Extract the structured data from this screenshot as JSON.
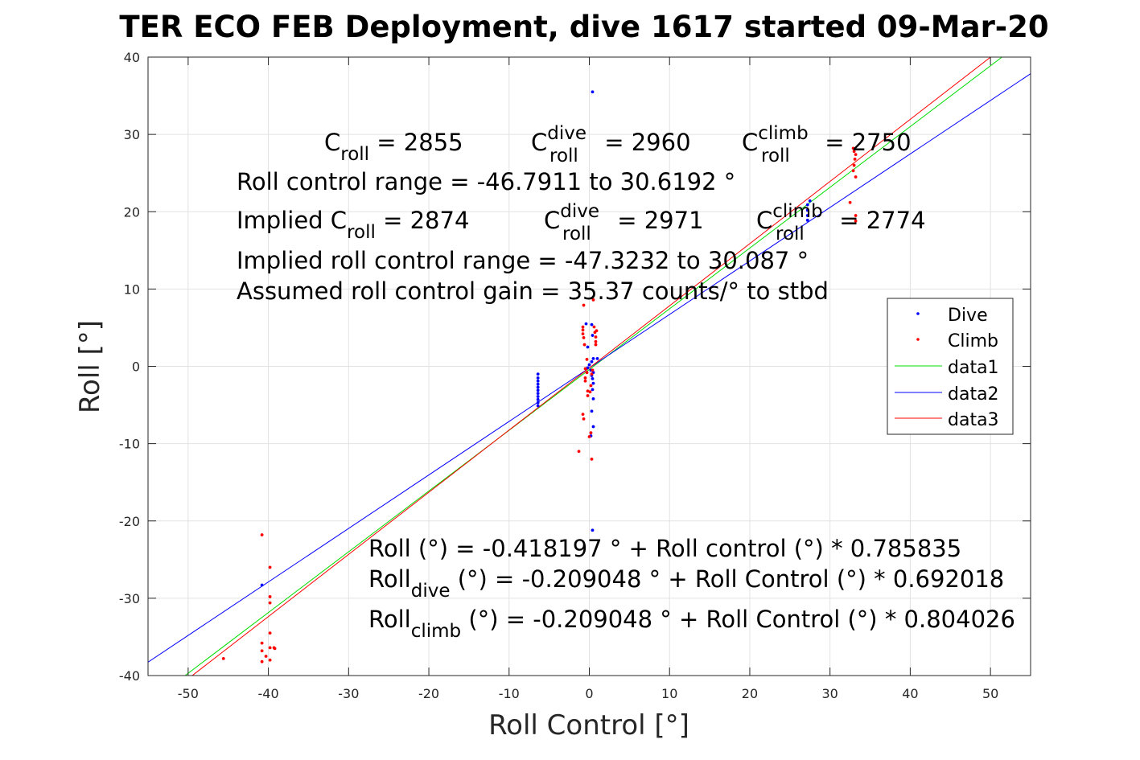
{
  "chart_data": {
    "type": "scatter",
    "title": "TER ECO FEB Deployment, dive 1617 started 09-Mar-20",
    "xlabel": "Roll Control [°]",
    "ylabel": "Roll [°]",
    "xlim": [
      -55,
      55
    ],
    "ylim": [
      -40,
      40
    ],
    "xticks": [
      -50,
      -40,
      -30,
      -20,
      -10,
      0,
      10,
      20,
      30,
      40,
      50
    ],
    "yticks": [
      -40,
      -30,
      -20,
      -10,
      0,
      10,
      20,
      30,
      40
    ],
    "grid": true,
    "legend_position": "right",
    "series": [
      {
        "name": "Dive",
        "kind": "points",
        "color": "#0000ff",
        "points": [
          [
            -40.8,
            -28.3
          ],
          [
            -6.4,
            -1.0
          ],
          [
            -6.4,
            -1.5
          ],
          [
            -6.4,
            -1.9
          ],
          [
            -6.4,
            -2.3
          ],
          [
            -6.4,
            -2.7
          ],
          [
            -6.4,
            -3.1
          ],
          [
            -6.4,
            -3.5
          ],
          [
            -6.4,
            -3.9
          ],
          [
            -6.4,
            -4.3
          ],
          [
            -6.4,
            -4.7
          ],
          [
            -6.4,
            -5.1
          ],
          [
            -0.4,
            5.5
          ],
          [
            0.3,
            5.4
          ],
          [
            0.4,
            4.0
          ],
          [
            -0.2,
            2.5
          ],
          [
            0.5,
            1.0
          ],
          [
            1.0,
            1.0
          ],
          [
            0.3,
            0.6
          ],
          [
            0.0,
            0.2
          ],
          [
            -0.2,
            -0.2
          ],
          [
            0.2,
            -0.5
          ],
          [
            0.5,
            -0.8
          ],
          [
            0.3,
            -1.2
          ],
          [
            0.4,
            -1.6
          ],
          [
            0.5,
            -2.2
          ],
          [
            0.4,
            -3.0
          ],
          [
            0.5,
            -4.2
          ],
          [
            0.3,
            -5.8
          ],
          [
            0.5,
            -7.8
          ],
          [
            0.2,
            -9.0
          ],
          [
            0.4,
            -21.2
          ],
          [
            0.4,
            35.5
          ],
          [
            27.2,
            18.9
          ],
          [
            27.2,
            19.5
          ],
          [
            27.2,
            20.2
          ],
          [
            27.2,
            20.9
          ],
          [
            27.5,
            21.4
          ]
        ]
      },
      {
        "name": "Climb",
        "kind": "points",
        "color": "#ff0000",
        "points": [
          [
            -45.6,
            -37.8
          ],
          [
            -40.8,
            -21.8
          ],
          [
            -40.8,
            -35.8
          ],
          [
            -40.8,
            -36.8
          ],
          [
            -40.8,
            -38.2
          ],
          [
            -40.3,
            -37.5
          ],
          [
            -39.8,
            -26.0
          ],
          [
            -39.8,
            -29.8
          ],
          [
            -39.8,
            -30.6
          ],
          [
            -39.8,
            -34.5
          ],
          [
            -39.8,
            -36.4
          ],
          [
            -39.8,
            -38.0
          ],
          [
            -39.3,
            -36.4
          ],
          [
            -39.2,
            -36.5
          ],
          [
            -1.3,
            -11.0
          ],
          [
            -0.8,
            -6.2
          ],
          [
            -0.7,
            -6.8
          ],
          [
            -0.7,
            7.9
          ],
          [
            -0.8,
            5.1
          ],
          [
            -0.8,
            4.7
          ],
          [
            -0.8,
            4.2
          ],
          [
            -0.7,
            3.7
          ],
          [
            -0.6,
            2.8
          ],
          [
            -0.5,
            -0.3
          ],
          [
            -0.5,
            -1.5
          ],
          [
            -0.5,
            -1.9
          ],
          [
            -0.3,
            -0.8
          ],
          [
            -0.3,
            0.9
          ],
          [
            -0.2,
            -3.2
          ],
          [
            -0.2,
            -3.8
          ],
          [
            0.0,
            -9.1
          ],
          [
            0.2,
            -8.6
          ],
          [
            0.3,
            -12.0
          ],
          [
            0.5,
            8.6
          ],
          [
            0.6,
            5.1
          ],
          [
            0.7,
            4.4
          ],
          [
            0.8,
            3.8
          ],
          [
            0.8,
            3.2
          ],
          [
            0.8,
            2.8
          ],
          [
            0.9,
            4.6
          ],
          [
            0.4,
            -0.5
          ],
          [
            0.3,
            -1.0
          ],
          [
            0.2,
            -2.5
          ],
          [
            0.1,
            -3.3
          ],
          [
            32.9,
            28.2
          ],
          [
            33.0,
            27.8
          ],
          [
            33.2,
            27.4
          ],
          [
            33.1,
            26.8
          ],
          [
            33.0,
            26.0
          ],
          [
            32.9,
            25.3
          ],
          [
            33.2,
            24.5
          ],
          [
            32.5,
            21.2
          ],
          [
            33.2,
            19.5
          ],
          [
            33.2,
            18.8
          ]
        ]
      },
      {
        "name": "data1",
        "kind": "line",
        "color": "#00dd00",
        "x": [
          -55,
          55
        ],
        "y": [
          -43.637,
          42.804
        ]
      },
      {
        "name": "data2",
        "kind": "line",
        "color": "#0000ff",
        "x": [
          -55,
          55
        ],
        "y": [
          -38.27,
          37.852
        ]
      },
      {
        "name": "data3",
        "kind": "line",
        "color": "#ff0000",
        "x": [
          -55,
          55
        ],
        "y": [
          -44.43,
          44.012
        ]
      }
    ]
  },
  "annotations": {
    "line1": {
      "c_roll_prefix": "C",
      "c_roll_sub": "roll",
      "c_roll_val": " = 2855",
      "c_dive_prefix": "C",
      "c_dive_sup": "dive",
      "c_dive_sub": "roll",
      "c_dive_val": " = 2960",
      "c_climb_prefix": "C",
      "c_climb_sup": "climb",
      "c_climb_sub": "roll",
      "c_climb_val": " = 2750"
    },
    "line2": "Roll control range = -46.7911 to 30.6192 °",
    "line3": {
      "implied_prefix": "Implied C",
      "implied_sub": "roll",
      "implied_val": " = 2874",
      "dive_prefix": "C",
      "dive_sup": "dive",
      "dive_sub": "roll",
      "dive_val": " = 2971",
      "climb_prefix": "C",
      "climb_sup": "climb",
      "climb_sub": "roll",
      "climb_val": " = 2774"
    },
    "line4": "Implied roll control range = -47.3232 to 30.087 °",
    "line5": "Assumed roll control gain = 35.37 counts/° to stbd",
    "fit1": "Roll (°) = -0.418197 ° + Roll control (°) * 0.785835",
    "fit2": {
      "prefix": "Roll",
      "sub": "dive",
      "rest": " (°) = -0.209048 ° + Roll Control (°) * 0.692018"
    },
    "fit3": {
      "prefix": "Roll",
      "sub": "climb",
      "rest": " (°) = -0.209048 ° + Roll Control (°) * 0.804026"
    }
  }
}
